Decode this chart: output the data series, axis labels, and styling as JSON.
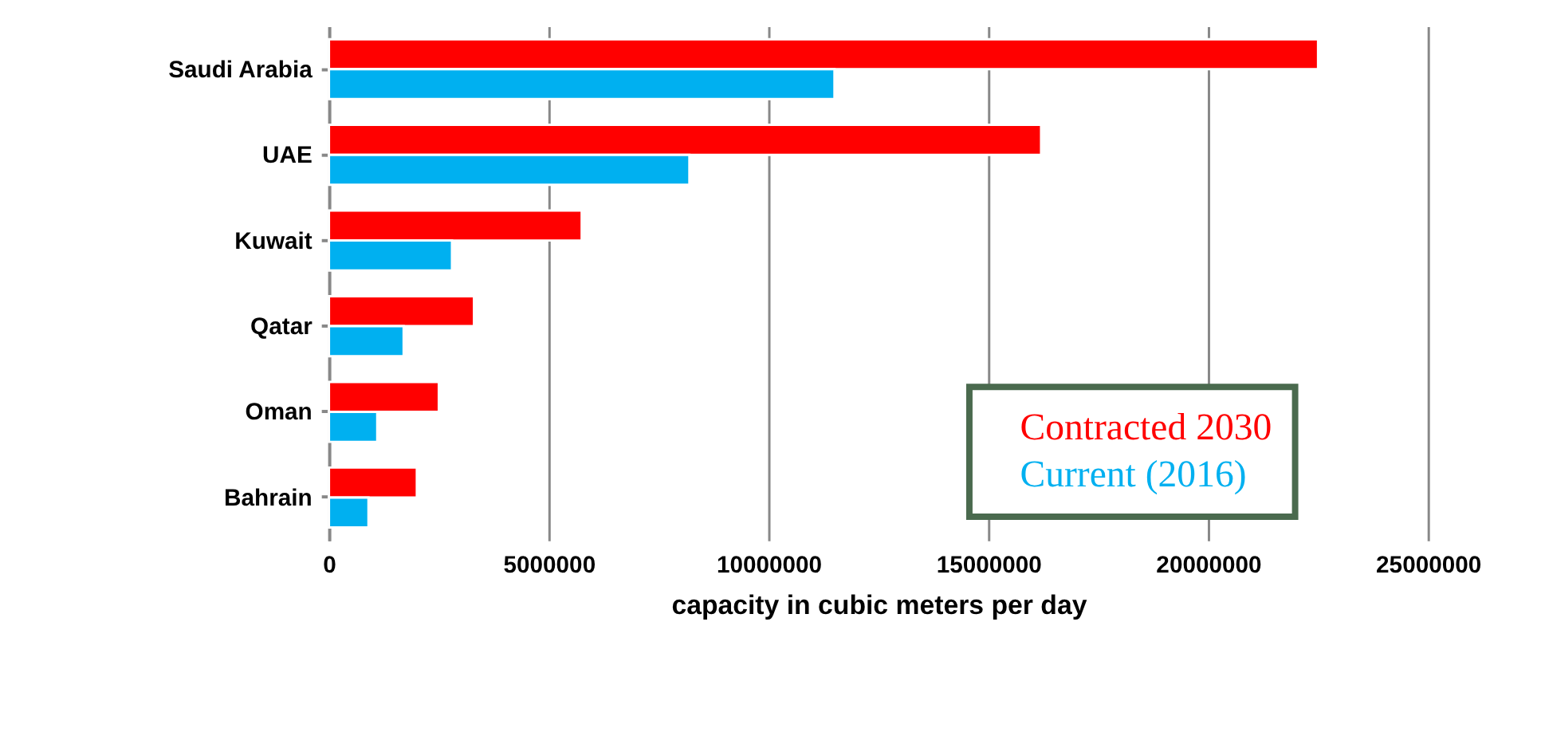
{
  "chart_data": {
    "type": "bar",
    "orientation": "horizontal",
    "xlabel": "capacity in cubic meters per day",
    "categories": [
      "Saudi Arabia",
      "UAE",
      "Kuwait",
      "Qatar",
      "Oman",
      "Bahrain"
    ],
    "series": [
      {
        "name": "Contracted 2030",
        "color": "#ff0000",
        "values": [
          22500000,
          16200000,
          5750000,
          3300000,
          2500000,
          2000000
        ]
      },
      {
        "name": "Current (2016)",
        "color": "#00b0f0",
        "values": [
          11500000,
          8200000,
          2800000,
          1700000,
          1100000,
          900000
        ]
      }
    ],
    "xlim": [
      0,
      25000000
    ],
    "xticks": [
      0,
      5000000,
      10000000,
      15000000,
      20000000,
      25000000
    ],
    "grid": "x",
    "legend": "bottom right"
  }
}
